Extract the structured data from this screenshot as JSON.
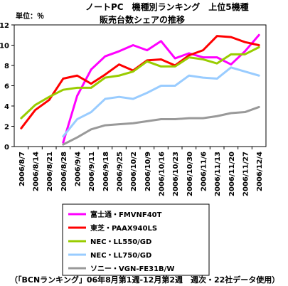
{
  "chart_data": {
    "type": "line",
    "title": "ノートPC　機種別ランキング　上位5機種",
    "subtitle": "販売台数シェアの推移",
    "ylabel": "単位：％",
    "ylim": [
      0,
      12
    ],
    "yticks": [
      0,
      2,
      4,
      6,
      8,
      10,
      12
    ],
    "grid": false,
    "legend_position": "bottom",
    "x": [
      "2006/8/7",
      "2006/8/14",
      "2006/8/21",
      "2006/8/28",
      "2006/9/4",
      "2006/9/11",
      "2006/9/18",
      "2006/9/25",
      "2006/10/2",
      "2006/10/9",
      "2006/10/16",
      "2006/10/23",
      "2006/10/30",
      "2006/11/6",
      "2006/11/13",
      "2006/11/20",
      "2006/11/27",
      "2006/12/4"
    ],
    "series": [
      {
        "name": "富士通・FMVNF40T",
        "color": "#ff00ff",
        "values": [
          null,
          null,
          null,
          0.4,
          5.0,
          7.6,
          8.9,
          9.4,
          10.0,
          9.5,
          10.4,
          8.7,
          9.2,
          8.8,
          8.8,
          8.1,
          9.4,
          11.0
        ]
      },
      {
        "name": "東芝・PAAX940LS",
        "color": "#ff0000",
        "values": [
          1.8,
          3.6,
          4.6,
          6.7,
          7.0,
          6.2,
          7.1,
          8.1,
          7.5,
          8.5,
          8.6,
          8.0,
          9.0,
          9.5,
          10.9,
          10.8,
          10.3,
          10.0
        ]
      },
      {
        "name": "NEC・LL550/GD",
        "color": "#99cc00",
        "values": [
          2.8,
          4.1,
          4.9,
          5.6,
          5.8,
          5.8,
          6.8,
          7.0,
          7.4,
          8.4,
          7.9,
          7.9,
          8.8,
          8.6,
          8.2,
          9.1,
          9.1,
          9.8
        ]
      },
      {
        "name": "NEC・LL750/GD",
        "color": "#99ccff",
        "values": [
          null,
          null,
          null,
          1.0,
          2.7,
          3.4,
          4.7,
          4.9,
          4.7,
          5.3,
          6.0,
          6.0,
          7.0,
          6.8,
          6.7,
          7.8,
          7.4,
          7.0
        ]
      },
      {
        "name": "ソニー・VGN-FE31B/W",
        "color": "#999999",
        "values": [
          null,
          null,
          null,
          0.2,
          0.9,
          1.7,
          2.1,
          2.2,
          2.3,
          2.5,
          2.7,
          2.7,
          2.8,
          2.8,
          3.0,
          3.3,
          3.4,
          3.9
        ]
      }
    ]
  },
  "footer": "（「BCNランキング」06年8月第1週-12月第2週　週次・22社データ使用）"
}
